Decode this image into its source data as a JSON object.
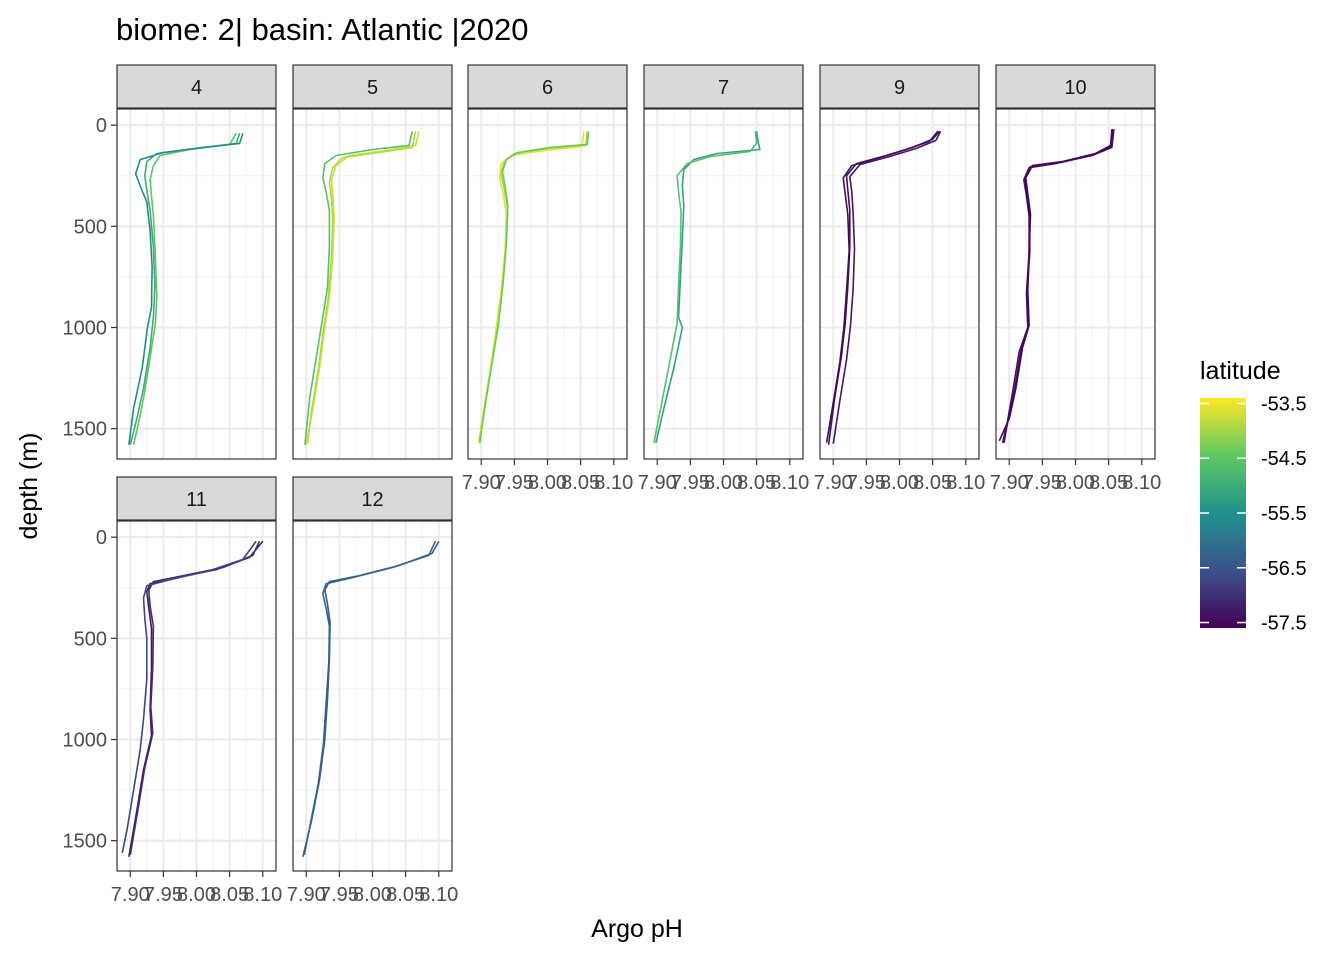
{
  "chart_data": {
    "type": "line",
    "title": "biome: 2| basin: Atlantic |2020",
    "xlabel": "Argo pH",
    "ylabel": "depth (m)",
    "xlim": [
      7.88,
      8.12
    ],
    "ylim": [
      1650,
      -80
    ],
    "x_ticks": [
      7.9,
      7.95,
      8.0,
      8.05,
      8.1
    ],
    "x_tick_labels": [
      "7.90",
      "7.95",
      "8.00",
      "8.05",
      "8.10"
    ],
    "y_ticks": [
      0,
      500,
      1000,
      1500
    ],
    "y_tick_labels": [
      "0",
      "500",
      "1000",
      "1500"
    ],
    "grid": true,
    "facet_by": "month",
    "legend": {
      "title": "latitude",
      "position": "right",
      "type": "colorbar",
      "range": [
        -57.6,
        -53.4
      ],
      "ticks": [
        -53.5,
        -54.5,
        -55.5,
        -56.5,
        -57.5
      ],
      "tick_labels": [
        "-53.5",
        "-54.5",
        "-55.5",
        "-56.5",
        "-57.5"
      ],
      "colors": [
        "#440154",
        "#3b528b",
        "#21918c",
        "#5ec962",
        "#fde725"
      ]
    },
    "facets": [
      {
        "label": "4",
        "profiles": [
          {
            "lat": -55.0,
            "depth": [
              40,
              90,
              115,
              140,
              180,
              250,
              320,
              420,
              600,
              800,
              950,
              1100,
              1300,
              1450,
              1580
            ],
            "ph": [
              8.065,
              8.06,
              8.0,
              7.94,
              7.925,
              7.922,
              7.925,
              7.93,
              7.935,
              7.937,
              7.935,
              7.93,
              7.92,
              7.91,
              7.9
            ]
          },
          {
            "lat": -54.5,
            "depth": [
              40,
              95,
              120,
              150,
              200,
              270,
              350,
              450,
              650,
              850,
              980,
              1150,
              1350,
              1480,
              1580
            ],
            "ph": [
              8.06,
              8.05,
              7.99,
              7.945,
              7.935,
              7.93,
              7.932,
              7.935,
              7.938,
              7.94,
              7.938,
              7.93,
              7.92,
              7.912,
              7.905
            ]
          },
          {
            "lat": -55.6,
            "depth": [
              40,
              90,
              110,
              135,
              170,
              240,
              300,
              380,
              520,
              700,
              900,
              1000,
              1200,
              1400,
              1580
            ],
            "ph": [
              8.07,
              8.065,
              8.01,
              7.95,
              7.915,
              7.908,
              7.915,
              7.925,
              7.93,
              7.933,
              7.932,
              7.926,
              7.918,
              7.905,
              7.898
            ]
          }
        ]
      },
      {
        "label": "5",
        "profiles": [
          {
            "lat": -53.7,
            "depth": [
              30,
              100,
              125,
              150,
              200,
              270,
              350,
              450,
              650,
              850,
              1000,
              1200,
              1400,
              1580
            ],
            "ph": [
              8.07,
              8.065,
              8.02,
              7.965,
              7.945,
              7.938,
              7.94,
              7.942,
              7.94,
              7.935,
              7.928,
              7.92,
              7.91,
              7.9
            ]
          },
          {
            "lat": -53.9,
            "depth": [
              30,
              110,
              135,
              160,
              210,
              280,
              360,
              460,
              660,
              860,
              1010,
              1210,
              1410,
              1570
            ],
            "ph": [
              8.065,
              8.06,
              8.01,
              7.955,
              7.94,
              7.935,
              7.938,
              7.94,
              7.938,
              7.933,
              7.926,
              7.918,
              7.908,
              7.902
            ]
          },
          {
            "lat": -54.6,
            "depth": [
              30,
              100,
              120,
              150,
              190,
              260,
              330,
              420,
              600,
              800,
              950,
              1150,
              1350,
              1580
            ],
            "ph": [
              8.06,
              8.055,
              8.0,
              7.945,
              7.928,
              7.925,
              7.93,
              7.935,
              7.935,
              7.932,
              7.925,
              7.915,
              7.905,
              7.898
            ]
          }
        ]
      },
      {
        "label": "6",
        "profiles": [
          {
            "lat": -54.0,
            "depth": [
              30,
              100,
              115,
              140,
              180,
              240,
              320,
              420,
              600,
              800,
              1000,
              1200,
              1400,
              1570
            ],
            "ph": [
              8.06,
              8.058,
              8.0,
              7.95,
              7.935,
              7.93,
              7.935,
              7.94,
              7.937,
              7.932,
              7.925,
              7.915,
              7.905,
              7.897
            ]
          },
          {
            "lat": -53.6,
            "depth": [
              30,
              105,
              125,
              150,
              190,
              260,
              340,
              440,
              620,
              820,
              1020,
              1220,
              1420,
              1570
            ],
            "ph": [
              8.055,
              8.052,
              7.995,
              7.945,
              7.93,
              7.928,
              7.933,
              7.938,
              7.936,
              7.93,
              7.922,
              7.913,
              7.903,
              7.896
            ]
          },
          {
            "lat": -54.4,
            "depth": [
              30,
              95,
              110,
              135,
              170,
              230,
              300,
              400,
              580,
              780,
              980,
              1180,
              1380,
              1570
            ],
            "ph": [
              8.062,
              8.06,
              8.005,
              7.955,
              7.938,
              7.932,
              7.936,
              7.94,
              7.938,
              7.933,
              7.926,
              7.916,
              7.906,
              7.898
            ]
          }
        ]
      },
      {
        "label": "7",
        "profiles": [
          {
            "lat": -55.2,
            "depth": [
              30,
              80,
              120,
              140,
              170,
              220,
              300,
              400,
              560,
              760,
              950,
              1000,
              1200,
              1400,
              1570
            ],
            "ph": [
              8.05,
              8.052,
              8.055,
              7.99,
              7.955,
              7.94,
              7.938,
              7.94,
              7.938,
              7.935,
              7.932,
              7.938,
              7.925,
              7.91,
              7.898
            ]
          },
          {
            "lat": -54.6,
            "depth": [
              30,
              90,
              130,
              155,
              190,
              250,
              330,
              430,
              600,
              800,
              980,
              1150,
              1350,
              1570
            ],
            "ph": [
              8.048,
              8.05,
              8.04,
              7.98,
              7.945,
              7.93,
              7.932,
              7.936,
              7.935,
              7.932,
              7.93,
              7.92,
              7.908,
              7.895
            ]
          }
        ]
      },
      {
        "label": "9",
        "profiles": [
          {
            "lat": -57.4,
            "depth": [
              30,
              70,
              110,
              150,
              190,
              250,
              320,
              420,
              600,
              800,
              980,
              1150,
              1350,
              1580
            ],
            "ph": [
              8.06,
              8.05,
              8.02,
              7.98,
              7.935,
              7.92,
              7.922,
              7.925,
              7.925,
              7.922,
              7.918,
              7.912,
              7.902,
              7.893
            ]
          },
          {
            "lat": -57.5,
            "depth": [
              30,
              80,
              120,
              160,
              200,
              260,
              340,
              440,
              620,
              820,
              1000,
              1170,
              1370,
              1570
            ],
            "ph": [
              8.058,
              8.045,
              8.01,
              7.97,
              7.928,
              7.915,
              7.918,
              7.922,
              7.924,
              7.92,
              7.916,
              7.91,
              7.9,
              7.89
            ]
          },
          {
            "lat": -57.3,
            "depth": [
              30,
              75,
              115,
              155,
              195,
              255,
              330,
              430,
              610,
              810,
              990,
              1160,
              1360,
              1575
            ],
            "ph": [
              8.062,
              8.055,
              8.025,
              7.985,
              7.94,
              7.925,
              7.928,
              7.93,
              7.932,
              7.93,
              7.926,
              7.92,
              7.91,
              7.9
            ]
          }
        ]
      },
      {
        "label": "10",
        "profiles": [
          {
            "lat": -57.5,
            "depth": [
              20,
              100,
              140,
              180,
              200,
              260,
              340,
              440,
              620,
              820,
              990,
              1100,
              1300,
              1450,
              1560
            ],
            "ph": [
              8.055,
              8.053,
              8.03,
              7.98,
              7.935,
              7.925,
              7.928,
              7.932,
              7.93,
              7.928,
              7.93,
              7.92,
              7.91,
              7.9,
              7.885
            ]
          },
          {
            "lat": -57.4,
            "depth": [
              20,
              110,
              150,
              190,
              210,
              270,
              350,
              450,
              630,
              830,
              1000,
              1120,
              1320,
              1470,
              1570
            ],
            "ph": [
              8.058,
              8.055,
              8.025,
              7.97,
              7.93,
              7.922,
              7.926,
              7.93,
              7.93,
              7.926,
              7.928,
              7.915,
              7.905,
              7.897,
              7.89
            ]
          },
          {
            "lat": -57.5,
            "depth": [
              20,
              105,
              145,
              185,
              205,
              265,
              345,
              445,
              625,
              825,
              995,
              1110,
              1310,
              1460,
              1570
            ],
            "ph": [
              8.056,
              8.054,
              8.028,
              7.975,
              7.932,
              7.924,
              7.927,
              7.931,
              7.931,
              7.927,
              7.929,
              7.918,
              7.908,
              7.898,
              7.892
            ]
          }
        ]
      },
      {
        "label": "11",
        "profiles": [
          {
            "lat": -57.3,
            "depth": [
              20,
              100,
              160,
              200,
              230,
              270,
              350,
              450,
              650,
              850,
              980,
              1150,
              1350,
              1580
            ],
            "ph": [
              8.1,
              8.08,
              8.03,
              7.97,
              7.93,
              7.925,
              7.928,
              7.932,
              7.932,
              7.93,
              7.932,
              7.92,
              7.91,
              7.898
            ]
          },
          {
            "lat": -57.0,
            "depth": [
              20,
              90,
              150,
              190,
              220,
              260,
              340,
              440,
              640,
              840,
              970,
              1140,
              1340,
              1570
            ],
            "ph": [
              8.095,
              8.085,
              8.04,
              7.98,
              7.935,
              7.928,
              7.93,
              7.935,
              7.934,
              7.931,
              7.934,
              7.922,
              7.912,
              7.9
            ]
          },
          {
            "lat": -56.7,
            "depth": [
              20,
              110,
              165,
              210,
              240,
              300,
              400,
              500,
              700,
              900,
              1050,
              1250,
              1450,
              1560
            ],
            "ph": [
              8.09,
              8.07,
              8.02,
              7.96,
              7.925,
              7.92,
              7.922,
              7.925,
              7.925,
              7.92,
              7.915,
              7.905,
              7.895,
              7.888
            ]
          }
        ]
      },
      {
        "label": "12",
        "profiles": [
          {
            "lat": -56.4,
            "depth": [
              20,
              80,
              140,
              190,
              220,
              260,
              330,
              420,
              600,
              800,
              1000,
              1200,
              1400,
              1580
            ],
            "ph": [
              8.1,
              8.09,
              8.04,
              7.98,
              7.935,
              7.928,
              7.932,
              7.936,
              7.935,
              7.932,
              7.928,
              7.92,
              7.908,
              7.895
            ]
          },
          {
            "lat": -56.3,
            "depth": [
              20,
              90,
              150,
              200,
              230,
              280,
              350,
              440,
              620,
              820,
              1020,
              1220,
              1420,
              1570
            ],
            "ph": [
              8.095,
              8.085,
              8.03,
              7.97,
              7.93,
              7.925,
              7.93,
              7.935,
              7.934,
              7.93,
              7.926,
              7.918,
              7.906,
              7.897
            ]
          }
        ]
      }
    ]
  }
}
